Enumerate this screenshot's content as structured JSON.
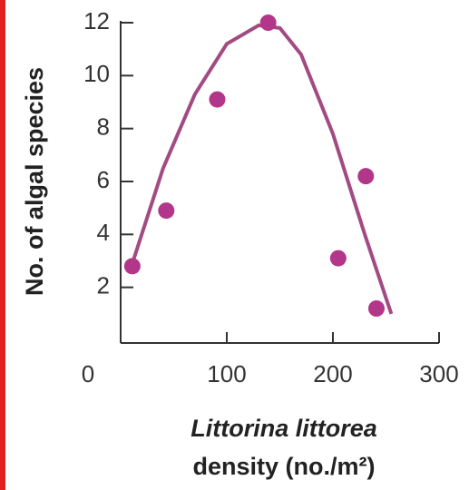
{
  "chart_data": {
    "type": "scatter",
    "xlabel": [
      "Littorina littorea",
      "density (no./m²)"
    ],
    "ylabel": "No. of algal species",
    "x": [
      11,
      43,
      91,
      139,
      205,
      231,
      241
    ],
    "values": [
      2.8,
      4.9,
      9.1,
      12.0,
      3.1,
      6.2,
      1.2
    ],
    "color": "#b2368a",
    "fit": {
      "x": [
        11,
        40,
        70,
        100,
        130,
        150,
        170,
        200,
        230,
        255
      ],
      "values": [
        2.9,
        6.5,
        9.3,
        11.2,
        11.9,
        11.8,
        10.8,
        7.8,
        4.0,
        1.0
      ],
      "color": "#a24a82"
    },
    "xlim": [
      0,
      300
    ],
    "xticks": [
      0,
      100,
      200,
      300
    ],
    "ylim": [
      0,
      12
    ],
    "yticks": [
      2,
      4,
      6,
      8,
      10,
      12
    ]
  }
}
